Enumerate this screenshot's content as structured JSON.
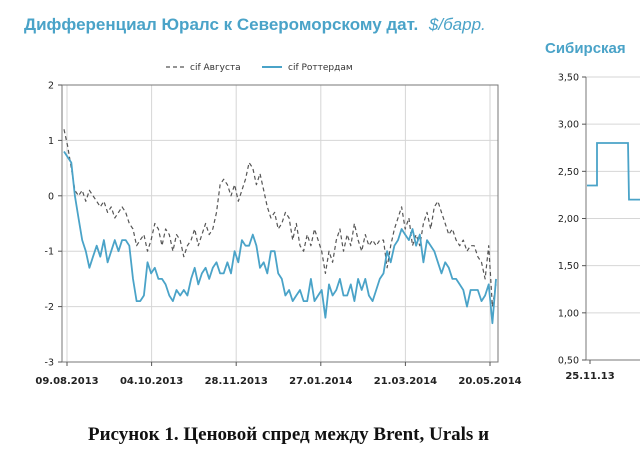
{
  "chart_data": [
    {
      "type": "line",
      "title": "Дифференциал Юралс к Североморскому дат.",
      "title_unit": "$/барр.",
      "x_tick_labels": [
        "09.08.2013",
        "04.10.2013",
        "28.11.2013",
        "27.01.2014",
        "21.03.2014",
        "20.05.2014"
      ],
      "ylim": [
        -3,
        2
      ],
      "y_ticks": [
        "2",
        "1",
        "0",
        "-1",
        "-2",
        "-3"
      ],
      "grid": true,
      "legend_position": "top-center",
      "series": [
        {
          "name": "cif Августа",
          "style": "dashed",
          "color": "#555555",
          "values": [
            1.2,
            0.9,
            0.5,
            0.1,
            0.0,
            0.1,
            -0.1,
            0.1,
            0.0,
            -0.1,
            -0.2,
            -0.1,
            -0.3,
            -0.2,
            -0.4,
            -0.3,
            -0.2,
            -0.3,
            -0.5,
            -0.6,
            -0.9,
            -0.8,
            -0.7,
            -1.0,
            -0.8,
            -0.5,
            -0.6,
            -0.9,
            -0.6,
            -0.7,
            -1.0,
            -0.7,
            -0.8,
            -1.1,
            -0.9,
            -0.8,
            -0.6,
            -0.9,
            -0.7,
            -0.5,
            -0.7,
            -0.6,
            -0.3,
            0.2,
            0.3,
            0.2,
            0.0,
            0.2,
            -0.1,
            0.1,
            0.3,
            0.6,
            0.5,
            0.2,
            0.4,
            0.1,
            -0.2,
            -0.4,
            -0.3,
            -0.6,
            -0.5,
            -0.3,
            -0.4,
            -0.8,
            -0.5,
            -0.9,
            -1.0,
            -0.7,
            -0.9,
            -0.6,
            -0.8,
            -1.0,
            -1.4,
            -1.0,
            -1.2,
            -0.8,
            -0.6,
            -1.0,
            -0.7,
            -0.9,
            -0.5,
            -0.8,
            -1.0,
            -0.7,
            -0.9,
            -0.8,
            -0.9,
            -0.8,
            -0.8,
            -1.3,
            -0.9,
            -0.6,
            -0.4,
            -0.2,
            -0.6,
            -0.4,
            -0.9,
            -0.7,
            -0.9,
            -0.5,
            -0.3,
            -0.6,
            -0.2,
            -0.1,
            -0.3,
            -0.5,
            -0.7,
            -0.6,
            -0.8,
            -0.9,
            -0.8,
            -1.0,
            -0.9,
            -0.9,
            -1.1,
            -1.2,
            -1.5,
            -0.9,
            -2.0,
            -1.6
          ]
        },
        {
          "name": "cif Роттердам",
          "style": "solid",
          "color": "#4aa3c8",
          "values": [
            0.8,
            0.7,
            0.6,
            0.0,
            -0.4,
            -0.8,
            -1.0,
            -1.3,
            -1.1,
            -0.9,
            -1.1,
            -0.8,
            -1.2,
            -1.0,
            -0.8,
            -1.0,
            -0.8,
            -0.8,
            -0.9,
            -1.5,
            -1.9,
            -1.9,
            -1.8,
            -1.2,
            -1.4,
            -1.3,
            -1.5,
            -1.5,
            -1.6,
            -1.8,
            -1.9,
            -1.7,
            -1.8,
            -1.7,
            -1.8,
            -1.5,
            -1.3,
            -1.6,
            -1.4,
            -1.3,
            -1.5,
            -1.3,
            -1.2,
            -1.4,
            -1.4,
            -1.2,
            -1.4,
            -1.0,
            -1.2,
            -0.8,
            -0.9,
            -0.9,
            -0.7,
            -0.9,
            -1.3,
            -1.2,
            -1.4,
            -1.0,
            -1.0,
            -1.4,
            -1.5,
            -1.8,
            -1.7,
            -1.9,
            -1.8,
            -1.7,
            -1.9,
            -1.9,
            -1.5,
            -1.9,
            -1.8,
            -1.7,
            -2.2,
            -1.6,
            -1.8,
            -1.7,
            -1.5,
            -1.8,
            -1.8,
            -1.6,
            -1.9,
            -1.5,
            -1.7,
            -1.5,
            -1.8,
            -1.9,
            -1.7,
            -1.5,
            -1.4,
            -1.0,
            -1.2,
            -0.9,
            -0.8,
            -0.6,
            -0.7,
            -0.8,
            -0.6,
            -0.9,
            -0.7,
            -1.2,
            -0.8,
            -0.9,
            -1.0,
            -1.2,
            -1.4,
            -1.2,
            -1.3,
            -1.5,
            -1.5,
            -1.6,
            -1.7,
            -2.0,
            -1.7,
            -1.7,
            -1.7,
            -1.9,
            -1.8,
            -1.6,
            -2.3,
            -1.5
          ]
        }
      ]
    },
    {
      "type": "line",
      "title": "Сибирская",
      "x_tick_labels": [
        "25.11.13"
      ],
      "ylim": [
        0.5,
        3.5
      ],
      "y_ticks": [
        "3,50",
        "3,00",
        "2,50",
        "2,00",
        "1,50",
        "1,00",
        "0,50"
      ],
      "grid": true,
      "series": [
        {
          "color": "#4aa3c8",
          "values": [
            2.35,
            2.35,
            2.8,
            2.8,
            2.8,
            2.8,
            2.2,
            2.2
          ]
        }
      ]
    }
  ],
  "caption": "Рисунок 1. Ценовой спред между Brent, Urals и"
}
